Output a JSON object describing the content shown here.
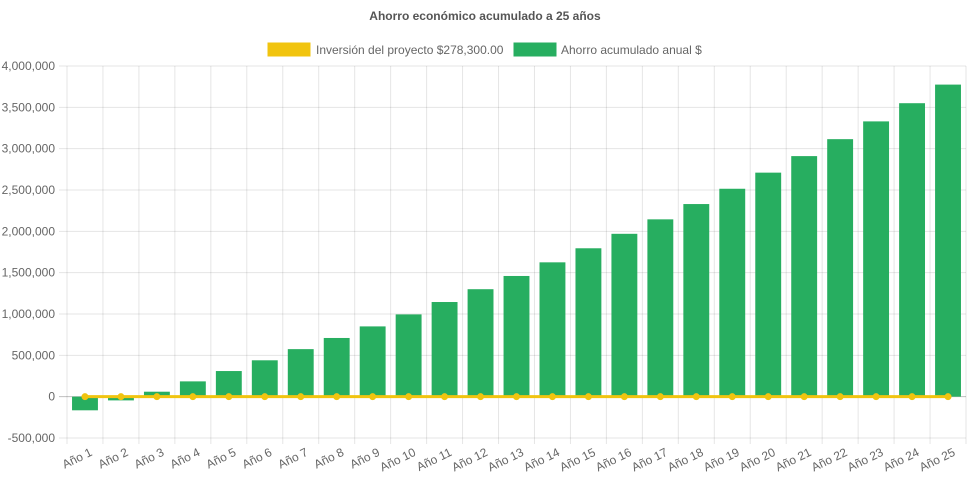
{
  "chart_data": {
    "type": "bar",
    "title": "Ahorro económico acumulado a 25 años",
    "categories": [
      "Año 1",
      "Año 2",
      "Año 3",
      "Año 4",
      "Año 5",
      "Año 6",
      "Año 7",
      "Año 8",
      "Año 9",
      "Año 10",
      "Año 11",
      "Año 12",
      "Año 13",
      "Año 14",
      "Año 15",
      "Año 16",
      "Año 17",
      "Año 18",
      "Año 19",
      "Año 20",
      "Año 21",
      "Año 22",
      "Año 23",
      "Año 24",
      "Año 25"
    ],
    "series": [
      {
        "name": "Inversión del proyecto $278,300.00",
        "type": "line",
        "color": "#f1c40f",
        "values": [
          0,
          0,
          0,
          0,
          0,
          0,
          0,
          0,
          0,
          0,
          0,
          0,
          0,
          0,
          0,
          0,
          0,
          0,
          0,
          0,
          0,
          0,
          0,
          0,
          0
        ]
      },
      {
        "name": "Ahorro acumulado anual $",
        "type": "bar",
        "color": "#27ae60",
        "values": [
          -165000,
          -45000,
          60000,
          185000,
          310000,
          440000,
          575000,
          710000,
          850000,
          995000,
          1145000,
          1300000,
          1460000,
          1625000,
          1795000,
          1970000,
          2145000,
          2330000,
          2515000,
          2710000,
          2910000,
          3115000,
          3330000,
          3550000,
          3775000
        ]
      }
    ],
    "ylim": [
      -500000,
      4000000
    ],
    "yticks": [
      -500000,
      0,
      500000,
      1000000,
      1500000,
      2000000,
      2500000,
      3000000,
      3500000,
      4000000
    ],
    "ytick_labels": [
      "-500,000",
      "0",
      "500,000",
      "1,000,000",
      "1,500,000",
      "2,000,000",
      "2,500,000",
      "3,000,000",
      "3,500,000",
      "4,000,000"
    ],
    "grid": true,
    "legend_position": "top"
  }
}
